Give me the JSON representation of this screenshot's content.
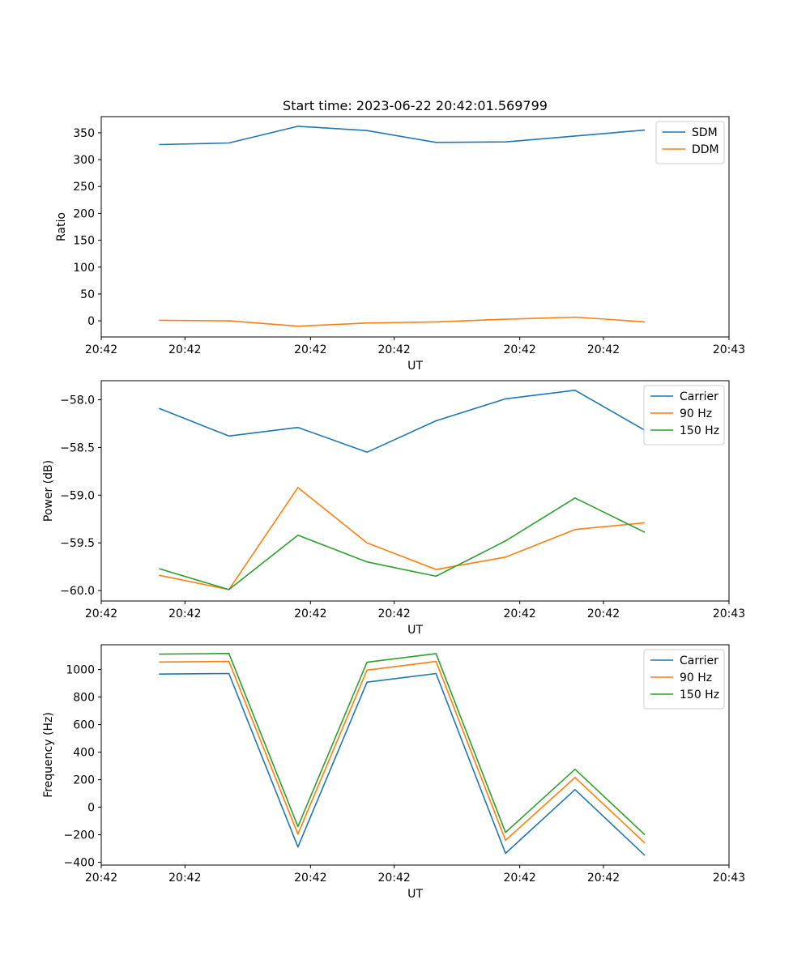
{
  "chart_data": [
    {
      "type": "line",
      "title": "Start time: 2023-06-22 20:42:01.569799",
      "xlabel": "UT",
      "ylabel": "Ratio",
      "x": [
        "20:42:01.938",
        "20:42:02.105",
        "20:42:02.270",
        "20:42:02.435",
        "20:42:02.600",
        "20:42:02.766",
        "20:42:02.932",
        "20:42:03.099"
      ],
      "xlim": [
        "20:42:01.8",
        "20:42:03.3"
      ],
      "xticks": [
        "20:42:01.8",
        "20:42:02.0",
        "20:42:02.3",
        "20:42:02.5",
        "20:42:02.8",
        "20:42:03.0",
        "20:42:03.3"
      ],
      "xtick_labels": [
        "20:42",
        "20:42",
        "20:42",
        "20:42",
        "20:42",
        "20:42",
        "20:43"
      ],
      "ylim": [
        -30,
        380
      ],
      "yticks": [
        0,
        50,
        100,
        150,
        200,
        250,
        300,
        350
      ],
      "ytick_labels": [
        "0",
        "50",
        "100",
        "150",
        "200",
        "250",
        "300",
        "350"
      ],
      "legend_position": "top-right",
      "series": [
        {
          "name": "SDM",
          "color": "#1f77b4",
          "values": [
            328,
            331,
            362,
            354,
            332,
            333,
            344,
            355
          ]
        },
        {
          "name": "DDM",
          "color": "#ff7f0e",
          "values": [
            1,
            0,
            -10,
            -4,
            -2,
            3,
            7,
            -2
          ]
        }
      ]
    },
    {
      "type": "line",
      "xlabel": "UT",
      "ylabel": "Power (dB)",
      "x": [
        "20:42:01.938",
        "20:42:02.105",
        "20:42:02.270",
        "20:42:02.435",
        "20:42:02.600",
        "20:42:02.766",
        "20:42:02.932",
        "20:42:03.099"
      ],
      "xlim": [
        "20:42:01.8",
        "20:42:03.3"
      ],
      "xticks": [
        "20:42:01.8",
        "20:42:02.0",
        "20:42:02.3",
        "20:42:02.5",
        "20:42:02.8",
        "20:42:03.0",
        "20:42:03.3"
      ],
      "xtick_labels": [
        "20:42",
        "20:42",
        "20:42",
        "20:42",
        "20:42",
        "20:42",
        "20:43"
      ],
      "ylim": [
        -60.11,
        -57.8
      ],
      "yticks": [
        -60.0,
        -59.5,
        -59.0,
        -58.5,
        -58.0
      ],
      "ytick_labels": [
        "−60.0",
        "−59.5",
        "−59.0",
        "−58.5",
        "−58.0"
      ],
      "legend_position": "top-right",
      "series": [
        {
          "name": "Carrier",
          "color": "#1f77b4",
          "values": [
            -58.09,
            -58.38,
            -58.29,
            -58.55,
            -58.22,
            -57.99,
            -57.9,
            -58.32
          ]
        },
        {
          "name": "90 Hz",
          "color": "#ff7f0e",
          "values": [
            -59.84,
            -59.99,
            -58.92,
            -59.5,
            -59.78,
            -59.65,
            -59.36,
            -59.29
          ]
        },
        {
          "name": "150 Hz",
          "color": "#2ca02c",
          "values": [
            -59.77,
            -59.99,
            -59.42,
            -59.7,
            -59.85,
            -59.48,
            -59.03,
            -59.39
          ]
        }
      ]
    },
    {
      "type": "line",
      "xlabel": "UT",
      "ylabel": "Frequency (Hz)",
      "x": [
        "20:42:01.938",
        "20:42:02.105",
        "20:42:02.270",
        "20:42:02.435",
        "20:42:02.600",
        "20:42:02.766",
        "20:42:02.932",
        "20:42:03.099"
      ],
      "xlim": [
        "20:42:01.8",
        "20:42:03.3"
      ],
      "xticks": [
        "20:42:01.8",
        "20:42:02.0",
        "20:42:02.3",
        "20:42:02.5",
        "20:42:02.8",
        "20:42:03.0",
        "20:42:03.3"
      ],
      "xtick_labels": [
        "20:42",
        "20:42",
        "20:42",
        "20:42",
        "20:42",
        "20:42",
        "20:43"
      ],
      "ylim": [
        -420,
        1180
      ],
      "yticks": [
        -400,
        -200,
        0,
        200,
        400,
        600,
        800,
        1000
      ],
      "ytick_labels": [
        "−400",
        "−200",
        "0",
        "200",
        "400",
        "600",
        "800",
        "1000"
      ],
      "legend_position": "top-right",
      "series": [
        {
          "name": "Carrier",
          "color": "#1f77b4",
          "values": [
            967,
            971,
            -288,
            908,
            971,
            -335,
            128,
            -350
          ]
        },
        {
          "name": "90 Hz",
          "color": "#ff7f0e",
          "values": [
            1055,
            1059,
            -195,
            996,
            1059,
            -240,
            216,
            -260
          ]
        },
        {
          "name": "150 Hz",
          "color": "#2ca02c",
          "values": [
            1112,
            1117,
            -140,
            1053,
            1116,
            -183,
            276,
            -200
          ]
        }
      ]
    }
  ]
}
